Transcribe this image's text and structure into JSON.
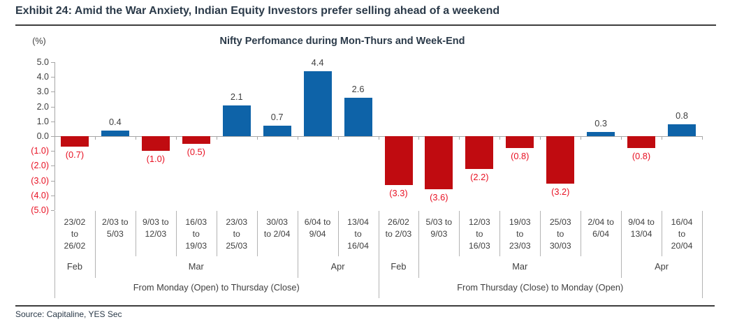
{
  "header": {
    "title": "Exhibit 24: Amid the War Anxiety, Indian Equity Investors prefer selling ahead of a weekend"
  },
  "footer": {
    "source": "Source: Capitaline, YES Sec"
  },
  "chart_data": {
    "type": "bar",
    "title": "Nifty Perfomance during Mon-Thurs and Week-End",
    "y_axis_unit_label": "(%)",
    "ylim": [
      -5.0,
      5.0
    ],
    "y_tick_step": 1.0,
    "y_tick_labels": [
      "5.0",
      "4.0",
      "3.0",
      "2.0",
      "1.0",
      "0.0",
      "(1.0)",
      "(2.0)",
      "(3.0)",
      "(4.0)",
      "(5.0)"
    ],
    "grid": false,
    "legend": "none",
    "categories": [
      "23/02\nto\n26/02",
      "2/03 to\n5/03",
      "9/03 to\n12/03",
      "16/03\nto\n19/03",
      "23/03\nto\n25/03",
      "30/03\nto 2/04",
      "6/04 to\n9/04",
      "13/04\nto\n16/04",
      "26/02\nto 2/03",
      "5/03 to\n9/03",
      "12/03\nto\n16/03",
      "19/03\nto\n23/03",
      "25/03\nto\n30/03",
      "2/04 to\n6/04",
      "9/04 to\n13/04",
      "16/04\nto\n20/04"
    ],
    "values": [
      -0.7,
      0.4,
      -1.0,
      -0.5,
      2.1,
      0.7,
      4.4,
      2.6,
      -3.3,
      -3.6,
      -2.2,
      -0.8,
      -3.2,
      0.3,
      -0.8,
      0.8
    ],
    "value_labels": [
      "(0.7)",
      "0.4",
      "(1.0)",
      "(0.5)",
      "2.1",
      "0.7",
      "4.4",
      "2.6",
      "(3.3)",
      "(3.6)",
      "(2.2)",
      "(0.8)",
      "(3.2)",
      "0.3",
      "(0.8)",
      "0.8"
    ],
    "month_groups": [
      {
        "label": "Feb",
        "start": 0,
        "span": 1
      },
      {
        "label": "Mar",
        "start": 1,
        "span": 5
      },
      {
        "label": "Apr",
        "start": 6,
        "span": 2
      },
      {
        "label": "Feb",
        "start": 8,
        "span": 1
      },
      {
        "label": "Mar",
        "start": 9,
        "span": 5
      },
      {
        "label": "Apr",
        "start": 14,
        "span": 2
      }
    ],
    "section_groups": [
      {
        "label": "From Monday (Open) to Thursday (Close)",
        "start": 0,
        "span": 8
      },
      {
        "label": "From Thursday (Close) to Monday (Open)",
        "start": 8,
        "span": 8
      }
    ],
    "colors": {
      "positive_bar": "#0e63a8",
      "negative_bar": "#c00b10",
      "positive_text": "#3f3f3f",
      "negative_text": "#e81123",
      "axis": "#a6a6a6",
      "divider": "#b3b3b3",
      "heading": "#2b3a49"
    }
  }
}
